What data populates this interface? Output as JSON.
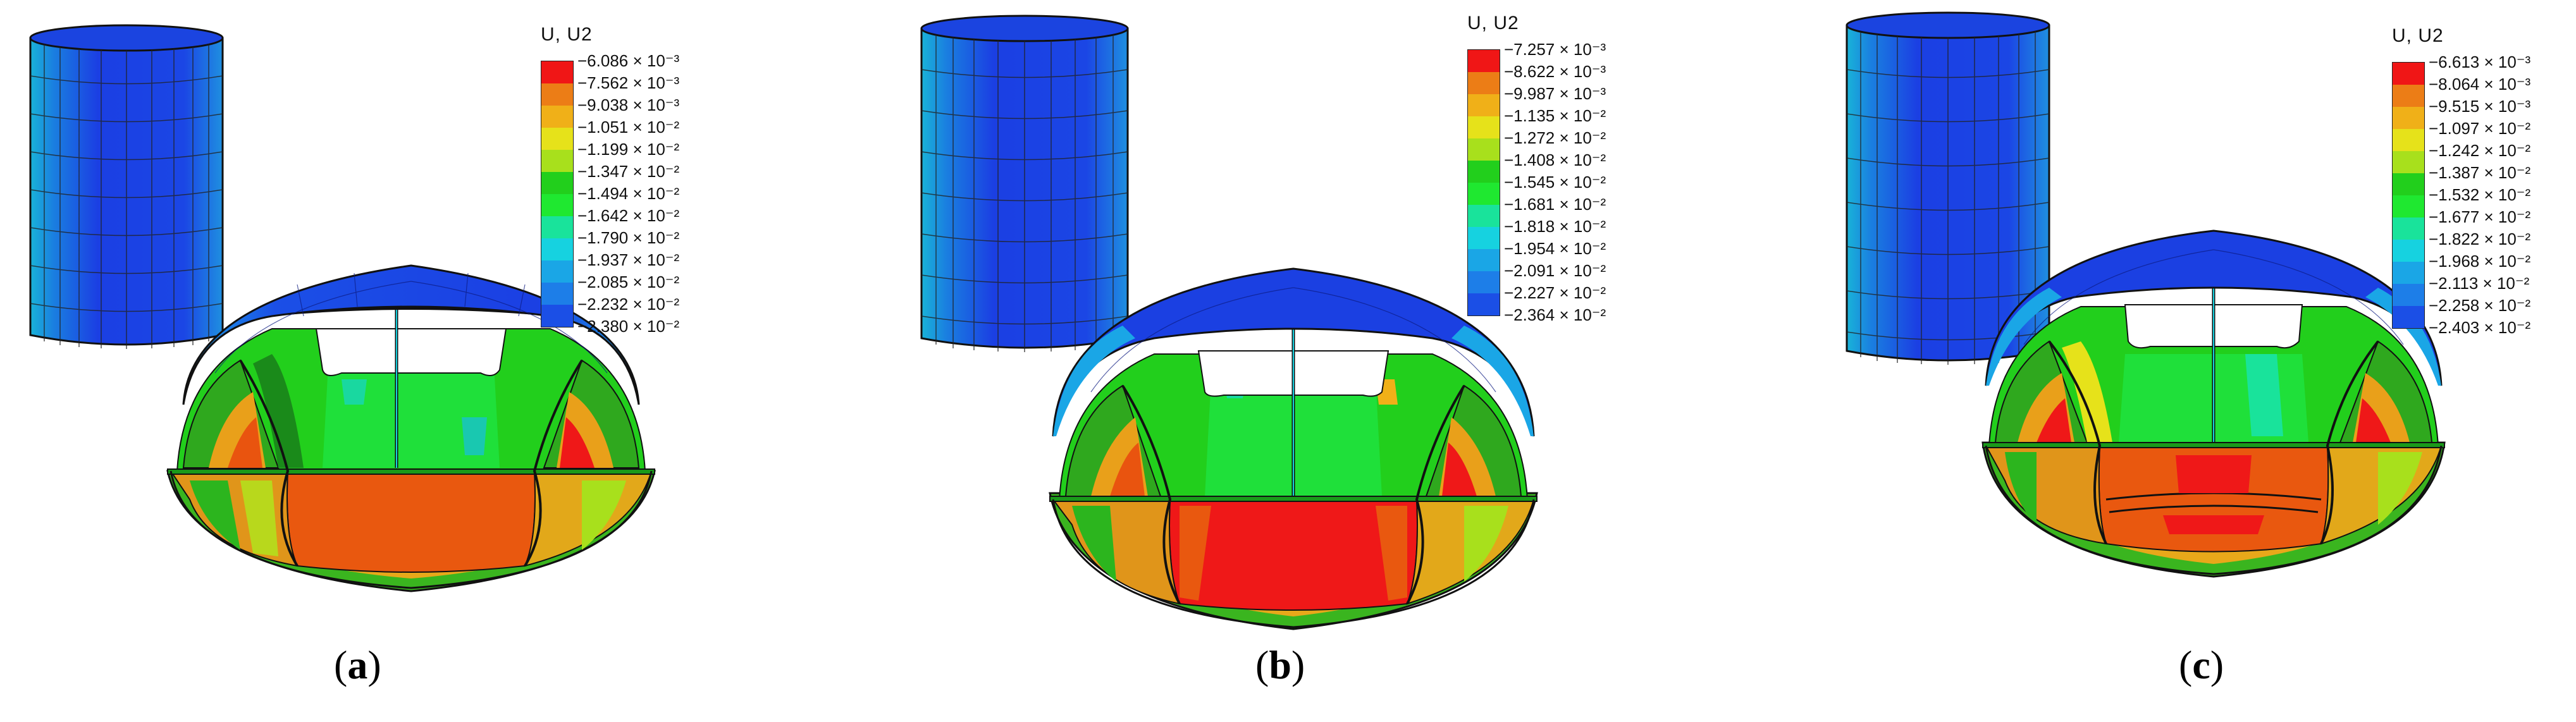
{
  "colors": {
    "blue_dark": "#0a1fd6",
    "blue": "#1b4fe6",
    "blue_mid": "#1d7ee8",
    "cyan_blue": "#1aa6e6",
    "cyan": "#16d2e0",
    "teal": "#19e39b",
    "green_light": "#1fe830",
    "green": "#22cf1c",
    "green_dark": "#1a9a1a",
    "yellow_green": "#a8e01c",
    "yellow": "#e6e21a",
    "orange_light": "#f0b018",
    "orange": "#ec7d16",
    "orange_red": "#e9540f",
    "red": "#f01616"
  },
  "panels": [
    {
      "caption_letter": "a",
      "legend": {
        "title": "U, U2",
        "values": [
          "−6.086 × 10⁻³",
          "−7.562 × 10⁻³",
          "−9.038 × 10⁻³",
          "−1.051 × 10⁻²",
          "−1.199 × 10⁻²",
          "−1.347 × 10⁻²",
          "−1.494 × 10⁻²",
          "−1.642 × 10⁻²",
          "−1.790 × 10⁻²",
          "−1.937 × 10⁻²",
          "−2.085 × 10⁻²",
          "−2.232 × 10⁻²",
          "−2.380 × 10⁻²"
        ]
      }
    },
    {
      "caption_letter": "b",
      "legend": {
        "title": "U, U2",
        "values": [
          "−7.257 × 10⁻³",
          "−8.622 × 10⁻³",
          "−9.987 × 10⁻³",
          "−1.135 × 10⁻²",
          "−1.272 × 10⁻²",
          "−1.408 × 10⁻²",
          "−1.545 × 10⁻²",
          "−1.681 × 10⁻²",
          "−1.818 × 10⁻²",
          "−1.954 × 10⁻²",
          "−2.091 × 10⁻²",
          "−2.227 × 10⁻²",
          "−2.364 × 10⁻²"
        ]
      }
    },
    {
      "caption_letter": "c",
      "legend": {
        "title": "U, U2",
        "values": [
          "−6.613 × 10⁻³",
          "−8.064 × 10⁻³",
          "−9.515 × 10⁻³",
          "−1.097 × 10⁻²",
          "−1.242 × 10⁻²",
          "−1.387 × 10⁻²",
          "−1.532 × 10⁻²",
          "−1.677 × 10⁻²",
          "−1.822 × 10⁻²",
          "−1.968 × 10⁻²",
          "−2.113 × 10⁻²",
          "−2.258 × 10⁻²",
          "−2.403 × 10⁻²"
        ]
      }
    }
  ],
  "legend_band_colors": [
    "#f01616",
    "#ec7d16",
    "#f0b018",
    "#e6e21a",
    "#a8e01c",
    "#22cf1c",
    "#1fe830",
    "#19e39b",
    "#16d2e0",
    "#1aa6e6",
    "#1d7ee8",
    "#1b4fe6",
    "#0a1fd6"
  ]
}
